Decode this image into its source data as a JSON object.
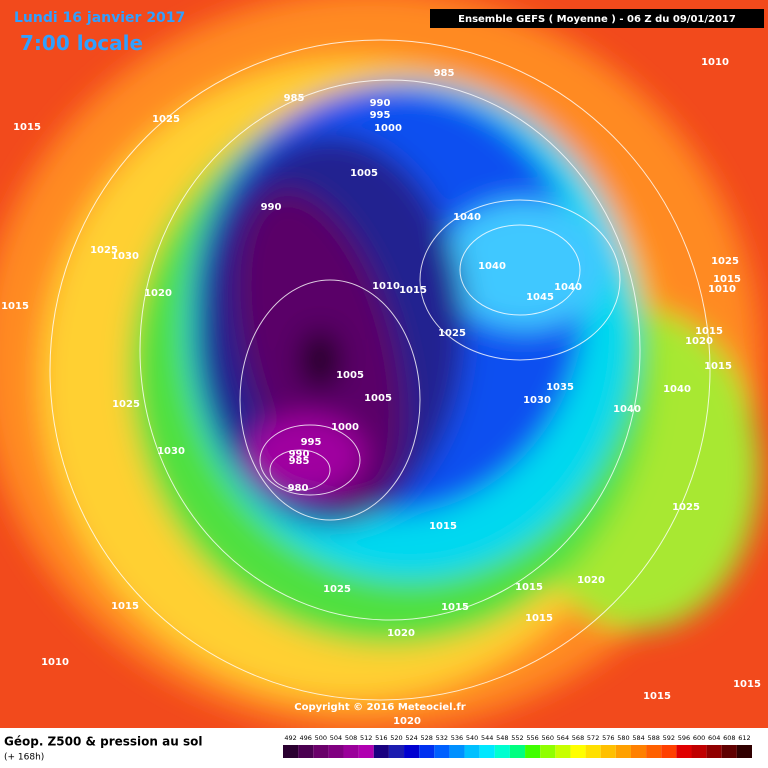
{
  "header": {
    "date": "Lundi 16 janvier 2017",
    "time": "7:00 locale",
    "model": "Ensemble GEFS  ( Moyenne )  -  06 Z du 09/01/2017"
  },
  "footer": {
    "parameter": "Géop. Z500 & pression au sol",
    "lead": "(+ 168h)",
    "copyright": "Copyright © 2016 Meteociel.fr"
  },
  "isobar_labels": [
    "985",
    "990",
    "995",
    "1000",
    "985",
    "1010",
    "1015",
    "1025",
    "1005",
    "990",
    "1040",
    "1025",
    "1030",
    "1020",
    "1040",
    "1040",
    "1045",
    "1010",
    "1015",
    "1025",
    "1015",
    "1010",
    "1015",
    "1025",
    "1015",
    "1020",
    "1015",
    "1005",
    "1005",
    "1035",
    "1030",
    "1040",
    "1025",
    "1040",
    "1000",
    "995",
    "990",
    "985",
    "1030",
    "980",
    "1025",
    "1015",
    "1020",
    "1015",
    "1025",
    "1015",
    "1015",
    "1015",
    "1020",
    "1010",
    "1015",
    "1015",
    "1020"
  ],
  "legend": {
    "values": [
      492,
      496,
      500,
      504,
      508,
      512,
      516,
      520,
      524,
      528,
      532,
      536,
      540,
      544,
      548,
      552,
      556,
      560,
      564,
      568,
      572,
      576,
      580,
      584,
      588,
      592,
      596,
      600,
      604,
      608,
      612
    ],
    "colors": [
      "#2a0030",
      "#4a0050",
      "#6a006a",
      "#800080",
      "#9a009a",
      "#b000b0",
      "#1a0080",
      "#1c1cb0",
      "#0000d0",
      "#0030f0",
      "#0060ff",
      "#0090ff",
      "#00c0ff",
      "#00e8ff",
      "#00ffd0",
      "#00ff80",
      "#40ff00",
      "#90ff00",
      "#c8ff00",
      "#ffff00",
      "#ffe000",
      "#ffc000",
      "#ffa000",
      "#ff8000",
      "#ff6000",
      "#ff4000",
      "#e00000",
      "#c00000",
      "#900000",
      "#600000",
      "#300000"
    ]
  }
}
